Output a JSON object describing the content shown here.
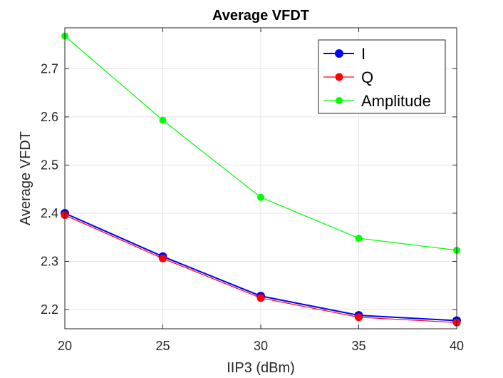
{
  "chart_data": {
    "type": "line",
    "title": "Average VFDT",
    "xlabel": "IIP3 (dBm)",
    "ylabel": "Average VFDT",
    "x": [
      20,
      25,
      30,
      35,
      40
    ],
    "xlim": [
      20,
      40
    ],
    "ylim": [
      2.16,
      2.785
    ],
    "xticks": [
      20,
      25,
      30,
      35,
      40
    ],
    "yticks": [
      2.2,
      2.3,
      2.4,
      2.5,
      2.6,
      2.7
    ],
    "xtick_labels": [
      "20",
      "25",
      "30",
      "35",
      "40"
    ],
    "ytick_labels": [
      "2.2",
      "2.3",
      "2.4",
      "2.5",
      "2.6",
      "2.7"
    ],
    "grid": true,
    "legend_position": "top-right",
    "series": [
      {
        "name": "I",
        "color": "#0000ff",
        "values": [
          2.4,
          2.31,
          2.228,
          2.188,
          2.177
        ]
      },
      {
        "name": "Q",
        "color": "#ff0000",
        "values": [
          2.396,
          2.306,
          2.224,
          2.184,
          2.173
        ]
      },
      {
        "name": "Amplitude",
        "color": "#00ff00",
        "values": [
          2.768,
          2.593,
          2.433,
          2.348,
          2.323
        ]
      }
    ]
  }
}
